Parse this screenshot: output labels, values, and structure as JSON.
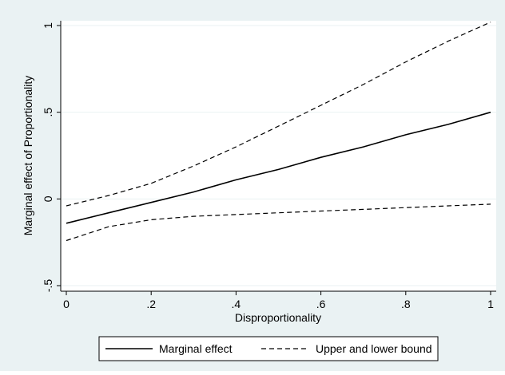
{
  "chart_data": {
    "type": "line",
    "title": "",
    "xlabel": "Disproportionality",
    "ylabel": "Marginal effect of Proportionality",
    "xlim": [
      0,
      1
    ],
    "ylim": [
      -0.5,
      1
    ],
    "x_ticks": [
      {
        "value": 0,
        "label": "0"
      },
      {
        "value": 0.2,
        "label": ".2"
      },
      {
        "value": 0.4,
        "label": ".4"
      },
      {
        "value": 0.6,
        "label": ".6"
      },
      {
        "value": 0.8,
        "label": ".8"
      },
      {
        "value": 1,
        "label": "1"
      }
    ],
    "y_ticks": [
      {
        "value": -0.5,
        "label": "-.5"
      },
      {
        "value": 0,
        "label": "0"
      },
      {
        "value": 0.5,
        "label": ".5"
      },
      {
        "value": 1,
        "label": "1"
      }
    ],
    "grid": true,
    "legend_position": "bottom",
    "series": [
      {
        "name": "Marginal effect",
        "style": "solid",
        "x": [
          0,
          0.1,
          0.2,
          0.3,
          0.4,
          0.5,
          0.6,
          0.7,
          0.8,
          0.9,
          1.0
        ],
        "y": [
          -0.14,
          -0.08,
          -0.02,
          0.04,
          0.11,
          0.17,
          0.24,
          0.3,
          0.37,
          0.43,
          0.5
        ]
      },
      {
        "name": "Upper and lower bound",
        "style": "dashed",
        "x": [
          0,
          0.1,
          0.2,
          0.3,
          0.4,
          0.5,
          0.6,
          0.7,
          0.8,
          0.9,
          1.0
        ],
        "y": [
          -0.04,
          0.02,
          0.09,
          0.19,
          0.3,
          0.42,
          0.54,
          0.66,
          0.79,
          0.91,
          1.02
        ]
      },
      {
        "name": "Upper and lower bound",
        "style": "dashed",
        "legend_hidden": true,
        "x": [
          0,
          0.1,
          0.2,
          0.3,
          0.4,
          0.5,
          0.6,
          0.7,
          0.8,
          0.9,
          1.0
        ],
        "y": [
          -0.24,
          -0.16,
          -0.12,
          -0.1,
          -0.09,
          -0.08,
          -0.07,
          -0.06,
          -0.05,
          -0.04,
          -0.03
        ]
      }
    ],
    "colors": {
      "outer_background": "#eaf2f3",
      "plot_background": "#ffffff",
      "grid": "#eaf2f3",
      "line": "#000000"
    }
  }
}
